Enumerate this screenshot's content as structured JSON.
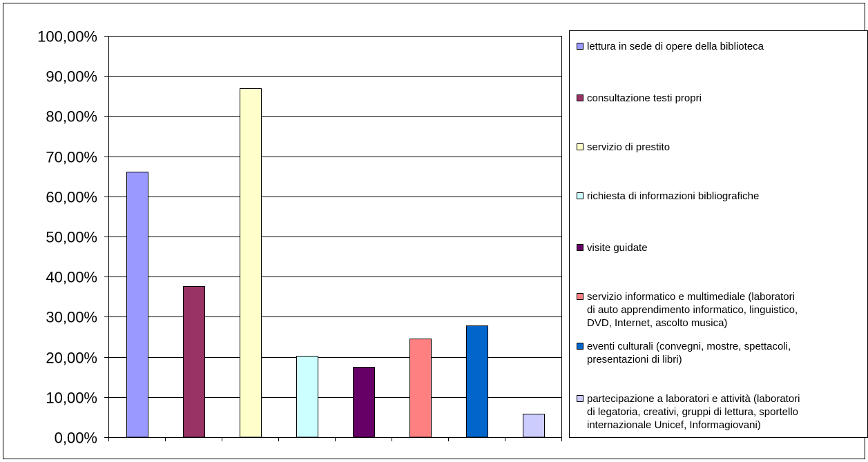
{
  "chart_data": {
    "type": "bar",
    "title": "",
    "xlabel": "",
    "ylabel": "",
    "ylim": [
      0,
      100
    ],
    "y_ticks": [
      "0,00%",
      "10,00%",
      "20,00%",
      "30,00%",
      "40,00%",
      "50,00%",
      "60,00%",
      "70,00%",
      "80,00%",
      "90,00%",
      "100,00%"
    ],
    "grid": true,
    "legend_position": "right",
    "series": [
      {
        "name": "lettura in sede di opere della biblioteca",
        "value": 66.1,
        "color": "#9999ff"
      },
      {
        "name": "consultazione testi propri",
        "value": 37.6,
        "color": "#993366"
      },
      {
        "name": "servizio di prestito",
        "value": 86.9,
        "color": "#ffffcc"
      },
      {
        "name": "richiesta di informazioni bibliografiche",
        "value": 20.3,
        "color": "#ccffff"
      },
      {
        "name": "visite guidate",
        "value": 17.6,
        "color": "#660066"
      },
      {
        "name": "servizio informatico e multimediale (laboratori\ndi auto apprendimento informatico, linguistico,\nDVD, Internet, ascolto musica)",
        "value": 24.6,
        "color": "#ff8080"
      },
      {
        "name": "eventi culturali (convegni, mostre, spettacoli,\npresentazioni di libri)",
        "value": 27.8,
        "color": "#0066cc"
      },
      {
        "name": "partecipazione a laboratori e attività (laboratori\ndi legatoria, creativi, gruppi di lettura, sportello\ninternazionale Unicef, Informagiovani)",
        "value": 5.9,
        "color": "#ccccff"
      }
    ]
  }
}
